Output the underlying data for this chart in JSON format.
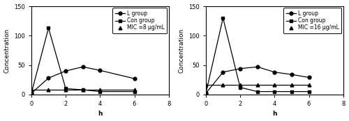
{
  "plot1": {
    "xlabel": "h",
    "ylabel": "Concentration",
    "xlim": [
      0,
      8
    ],
    "ylim": [
      0,
      150
    ],
    "yticks": [
      0,
      50,
      100,
      150
    ],
    "xticks": [
      0,
      2,
      4,
      6,
      8
    ],
    "L_group": {
      "x": [
        0,
        1,
        2,
        3,
        4,
        6
      ],
      "y": [
        2,
        28,
        40,
        47,
        41,
        27
      ],
      "label": "L group",
      "marker": "o"
    },
    "Con_group": {
      "x": [
        0,
        1,
        2,
        3,
        4,
        6
      ],
      "y": [
        2,
        113,
        10,
        8,
        5,
        5
      ],
      "label": "Con group",
      "marker": "s"
    },
    "MIC": {
      "x": [
        0,
        6
      ],
      "y": [
        8,
        8
      ],
      "label": "MIC =8 µg/mL",
      "marker": "^",
      "marker_x": [
        0,
        1,
        2,
        3,
        4,
        6
      ],
      "marker_y": [
        8,
        8,
        8,
        8,
        8,
        8
      ]
    }
  },
  "plot2": {
    "xlabel": "h",
    "ylabel": "Concentration",
    "xlim": [
      0,
      8
    ],
    "ylim": [
      0,
      150
    ],
    "yticks": [
      0,
      50,
      100,
      150
    ],
    "xticks": [
      0,
      2,
      4,
      6,
      8
    ],
    "L_group": {
      "x": [
        0,
        1,
        2,
        3,
        4,
        5,
        6
      ],
      "y": [
        2,
        38,
        44,
        47,
        38,
        34,
        29
      ],
      "label": "L group",
      "marker": "o"
    },
    "Con_group": {
      "x": [
        0,
        1,
        2,
        3,
        4,
        5,
        6
      ],
      "y": [
        2,
        130,
        12,
        5,
        5,
        5,
        5
      ],
      "label": "Con group",
      "marker": "s"
    },
    "MIC": {
      "x": [
        0,
        6
      ],
      "y": [
        16,
        16
      ],
      "label": "MIC =16 µg/mL",
      "marker": "^",
      "marker_x": [
        0,
        1,
        2,
        3,
        4,
        5,
        6
      ],
      "marker_y": [
        16,
        16,
        16,
        16,
        16,
        16,
        16
      ]
    }
  },
  "line_color": "#000000",
  "fontsize": 6.5,
  "legend_fontsize": 5.5,
  "tick_fontsize": 6,
  "markersize": 3.5,
  "linewidth": 0.9
}
